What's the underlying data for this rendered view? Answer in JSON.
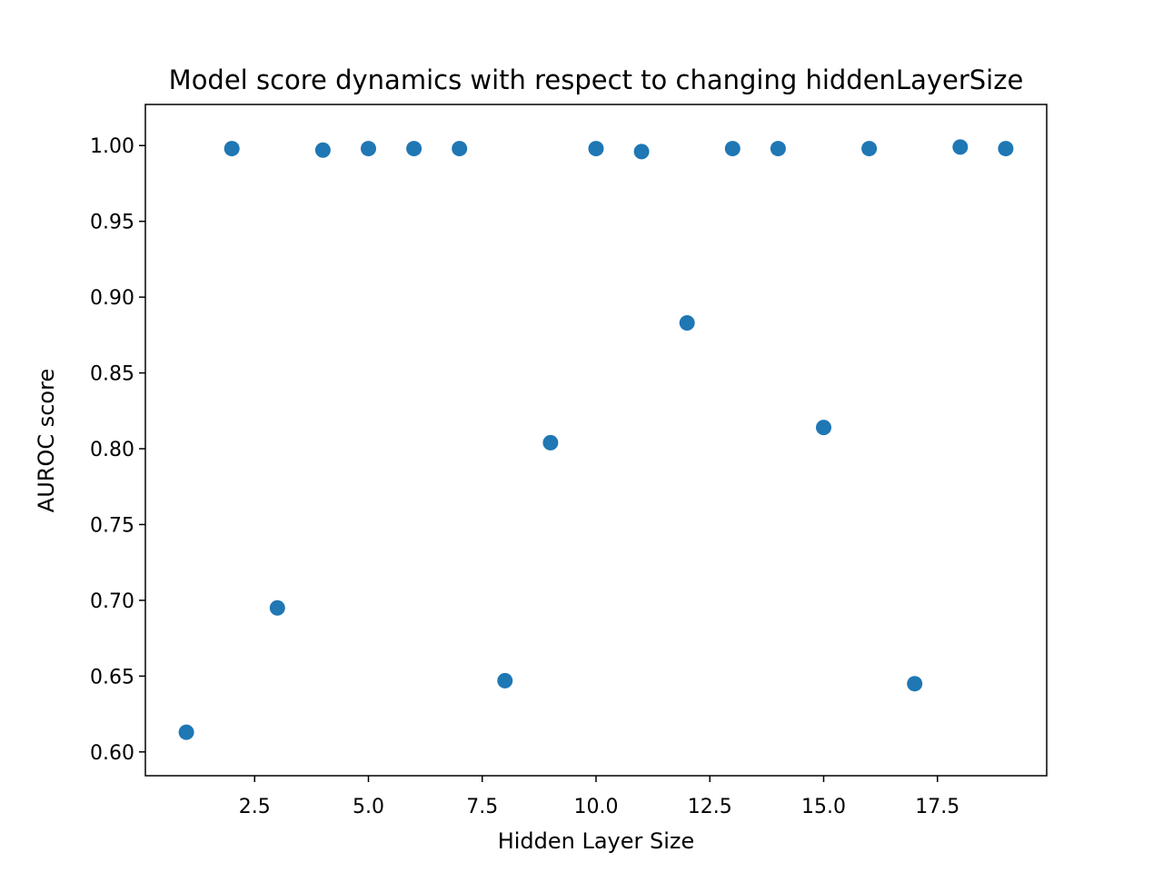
{
  "chart_data": {
    "type": "scatter",
    "title": "Model score dynamics with respect to changing hiddenLayerSize",
    "xlabel": "Hidden Layer Size",
    "ylabel": "AUROC score",
    "xlim": [
      0.1,
      19.9
    ],
    "ylim": [
      0.5843,
      1.0271
    ],
    "x_ticks": [
      "2.5",
      "5.0",
      "7.5",
      "10.0",
      "12.5",
      "15.0",
      "17.5"
    ],
    "y_ticks": [
      "0.60",
      "0.65",
      "0.70",
      "0.75",
      "0.80",
      "0.85",
      "0.90",
      "0.95",
      "1.00"
    ],
    "grid": false,
    "marker_color": "#1f77b4",
    "series": [
      {
        "x": [
          1,
          2,
          3,
          4,
          5,
          6,
          7,
          8,
          9,
          10,
          11,
          12,
          13,
          14,
          15,
          16,
          17,
          18,
          19
        ],
        "y": [
          0.613,
          0.998,
          0.695,
          0.997,
          0.998,
          0.998,
          0.998,
          0.647,
          0.804,
          0.998,
          0.996,
          0.883,
          0.998,
          0.998,
          0.814,
          0.998,
          0.645,
          0.999,
          0.998
        ]
      }
    ]
  }
}
